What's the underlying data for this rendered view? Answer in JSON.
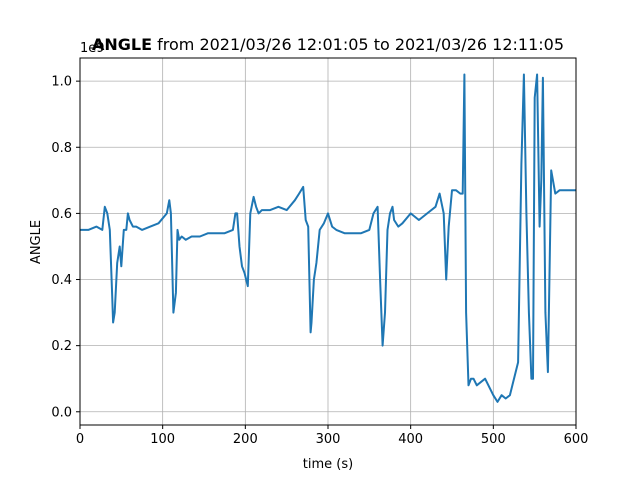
{
  "chart_data": {
    "type": "line",
    "title_bold": "ANGLE",
    "title_rest": " from 2021/03/26 12:01:05 to 2021/03/26 12:11:05",
    "xlabel": "time (s)",
    "ylabel": "ANGLE",
    "y_offset_label": "1e9",
    "xlim": [
      0,
      600
    ],
    "ylim": [
      -0.04,
      1.07
    ],
    "grid": true,
    "line_color": "#1f77b4",
    "x_ticks": [
      0,
      100,
      200,
      300,
      400,
      500,
      600
    ],
    "x_tick_labels": [
      "0",
      "100",
      "200",
      "300",
      "400",
      "500",
      "600"
    ],
    "y_ticks": [
      0.0,
      0.2,
      0.4,
      0.6,
      0.8,
      1.0
    ],
    "y_tick_labels": [
      "0.0",
      "0.2",
      "0.4",
      "0.6",
      "0.8",
      "1.0"
    ],
    "series": [
      {
        "x": [
          0,
          10,
          20,
          27,
          30,
          33,
          36,
          39,
          40,
          42,
          45,
          48,
          50,
          53,
          56,
          58,
          60,
          64,
          68,
          75,
          85,
          95,
          105,
          108,
          110,
          113,
          116,
          118,
          120,
          123,
          128,
          135,
          145,
          155,
          165,
          175,
          185,
          188,
          190,
          193,
          196,
          199,
          203,
          206,
          210,
          213,
          216,
          220,
          230,
          240,
          250,
          260,
          265,
          270,
          273,
          276,
          279,
          280,
          283,
          286,
          290,
          295,
          300,
          305,
          310,
          320,
          330,
          340,
          350,
          355,
          360,
          363,
          366,
          369,
          372,
          375,
          378,
          380,
          385,
          390,
          400,
          410,
          420,
          430,
          435,
          440,
          443,
          446,
          450,
          455,
          460,
          463,
          465,
          467,
          470,
          473,
          476,
          480,
          490,
          500,
          505,
          510,
          515,
          520,
          525,
          530,
          534,
          537,
          540,
          543,
          546,
          548,
          550,
          553,
          556,
          558,
          560,
          563,
          566,
          570,
          575,
          580,
          590,
          600
        ],
        "y": [
          0.55,
          0.55,
          0.56,
          0.55,
          0.62,
          0.6,
          0.55,
          0.35,
          0.27,
          0.3,
          0.45,
          0.5,
          0.44,
          0.55,
          0.55,
          0.6,
          0.58,
          0.56,
          0.56,
          0.55,
          0.56,
          0.57,
          0.6,
          0.64,
          0.6,
          0.3,
          0.36,
          0.55,
          0.52,
          0.53,
          0.52,
          0.53,
          0.53,
          0.54,
          0.54,
          0.54,
          0.55,
          0.6,
          0.6,
          0.5,
          0.44,
          0.42,
          0.38,
          0.6,
          0.65,
          0.62,
          0.6,
          0.61,
          0.61,
          0.62,
          0.61,
          0.64,
          0.66,
          0.68,
          0.58,
          0.56,
          0.24,
          0.27,
          0.4,
          0.45,
          0.55,
          0.57,
          0.6,
          0.56,
          0.55,
          0.54,
          0.54,
          0.54,
          0.55,
          0.6,
          0.62,
          0.4,
          0.2,
          0.3,
          0.55,
          0.6,
          0.62,
          0.58,
          0.56,
          0.57,
          0.6,
          0.58,
          0.6,
          0.62,
          0.66,
          0.6,
          0.4,
          0.56,
          0.67,
          0.67,
          0.66,
          0.66,
          1.02,
          0.3,
          0.08,
          0.1,
          0.1,
          0.08,
          0.1,
          0.05,
          0.03,
          0.05,
          0.04,
          0.05,
          0.1,
          0.15,
          0.75,
          1.02,
          0.6,
          0.3,
          0.1,
          0.1,
          0.95,
          1.02,
          0.56,
          0.7,
          1.01,
          0.3,
          0.12,
          0.73,
          0.66,
          0.67,
          0.67,
          0.67
        ]
      }
    ]
  }
}
